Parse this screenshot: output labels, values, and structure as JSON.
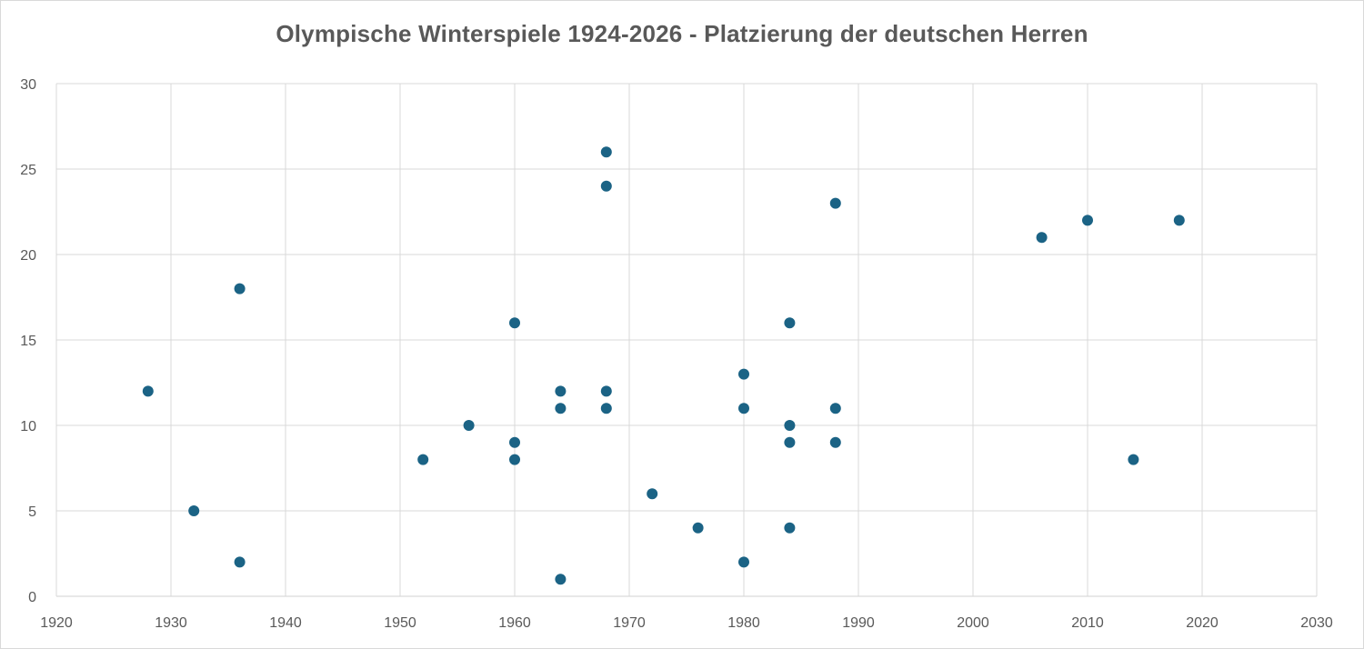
{
  "chart_data": {
    "type": "scatter",
    "title": "Olympische Winterspiele 1924-2026 - Platzierung der deutschen Herren",
    "xlabel": "",
    "ylabel": "",
    "xlim": [
      1920,
      2030
    ],
    "ylim": [
      0,
      30
    ],
    "xticks": [
      1920,
      1930,
      1940,
      1950,
      1960,
      1970,
      1980,
      1990,
      2000,
      2010,
      2020,
      2030
    ],
    "yticks": [
      0,
      5,
      10,
      15,
      20,
      25,
      30
    ],
    "grid": true,
    "legend": "none",
    "color": "#1b6385",
    "points": [
      {
        "x": 1928,
        "y": 12
      },
      {
        "x": 1932,
        "y": 5
      },
      {
        "x": 1936,
        "y": 18
      },
      {
        "x": 1936,
        "y": 2
      },
      {
        "x": 1952,
        "y": 8
      },
      {
        "x": 1956,
        "y": 10
      },
      {
        "x": 1960,
        "y": 16
      },
      {
        "x": 1960,
        "y": 9
      },
      {
        "x": 1960,
        "y": 8
      },
      {
        "x": 1964,
        "y": 12
      },
      {
        "x": 1964,
        "y": 11
      },
      {
        "x": 1964,
        "y": 1
      },
      {
        "x": 1968,
        "y": 26
      },
      {
        "x": 1968,
        "y": 24
      },
      {
        "x": 1968,
        "y": 12
      },
      {
        "x": 1968,
        "y": 11
      },
      {
        "x": 1972,
        "y": 6
      },
      {
        "x": 1976,
        "y": 4
      },
      {
        "x": 1980,
        "y": 13
      },
      {
        "x": 1980,
        "y": 11
      },
      {
        "x": 1980,
        "y": 2
      },
      {
        "x": 1984,
        "y": 16
      },
      {
        "x": 1984,
        "y": 10
      },
      {
        "x": 1984,
        "y": 9
      },
      {
        "x": 1984,
        "y": 4
      },
      {
        "x": 1988,
        "y": 23
      },
      {
        "x": 1988,
        "y": 11
      },
      {
        "x": 1988,
        "y": 9
      },
      {
        "x": 2006,
        "y": 21
      },
      {
        "x": 2010,
        "y": 22
      },
      {
        "x": 2014,
        "y": 8
      },
      {
        "x": 2018,
        "y": 22
      }
    ]
  }
}
